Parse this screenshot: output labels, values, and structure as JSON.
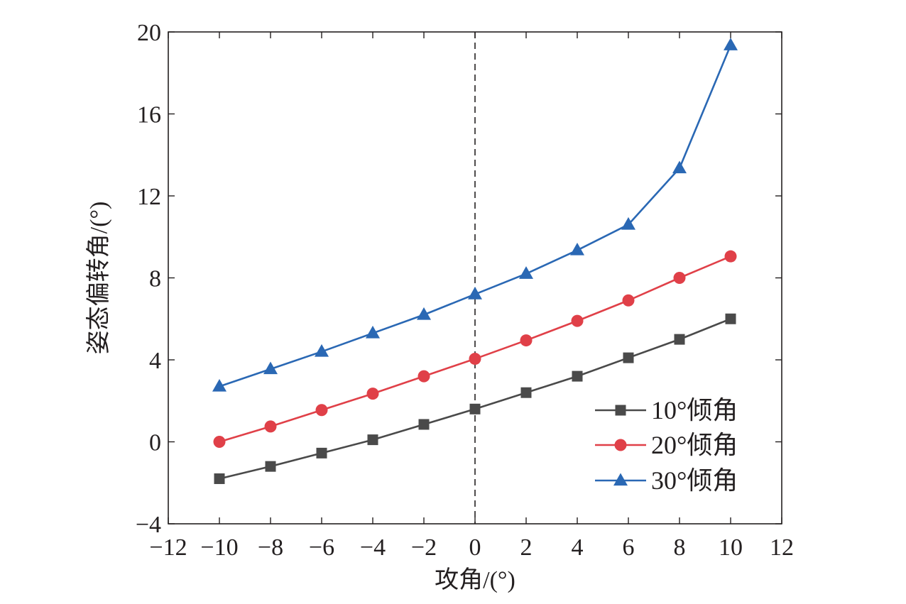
{
  "chart_data": {
    "type": "line",
    "title": "",
    "xlabel": "攻角/(°)",
    "ylabel": "姿态偏转角/(°)",
    "xlim": [
      -12,
      12
    ],
    "ylim": [
      -4,
      20
    ],
    "xticks": [
      -12,
      -10,
      -8,
      -6,
      -4,
      -2,
      0,
      2,
      4,
      6,
      8,
      10,
      12
    ],
    "yticks": [
      -4,
      0,
      4,
      8,
      12,
      16,
      20
    ],
    "xtick_labels": [
      "−12",
      "−10",
      "−8",
      "−6",
      "−4",
      "−2",
      "0",
      "2",
      "4",
      "6",
      "8",
      "10",
      "12"
    ],
    "ytick_labels": [
      "−4",
      "0",
      "4",
      "8",
      "12",
      "16",
      "20"
    ],
    "grid": false,
    "legend_position": "bottom-right",
    "reference_line": {
      "axis": "x",
      "value": 0,
      "style": "dashed"
    },
    "x": [
      -10,
      -8,
      -6,
      -4,
      -2,
      0,
      2,
      4,
      6,
      8,
      10
    ],
    "series": [
      {
        "name": "10°倾角",
        "marker": "square",
        "color": "#4a4a4a",
        "values": [
          -1.8,
          -1.2,
          -0.55,
          0.1,
          0.85,
          1.6,
          2.4,
          3.2,
          4.1,
          5.0,
          6.0
        ]
      },
      {
        "name": "20°倾角",
        "marker": "circle",
        "color": "#e04048",
        "values": [
          0.0,
          0.75,
          1.55,
          2.35,
          3.2,
          4.05,
          4.95,
          5.9,
          6.9,
          8.0,
          9.05
        ]
      },
      {
        "name": "30°倾角",
        "marker": "triangle",
        "color": "#2a68b4",
        "values": [
          2.7,
          3.55,
          4.4,
          5.3,
          6.2,
          7.2,
          8.2,
          9.35,
          10.6,
          13.35,
          19.35
        ]
      }
    ]
  }
}
